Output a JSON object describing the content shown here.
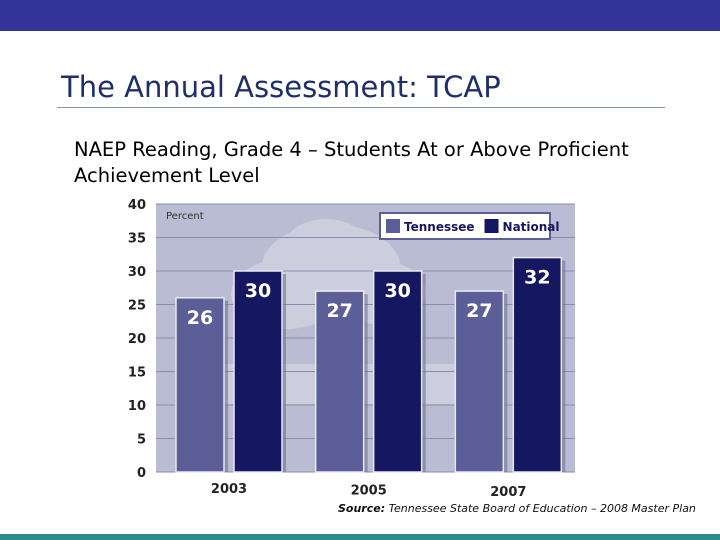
{
  "slide": {
    "title": "The Annual Assessment: TCAP",
    "subtitle": "NAEP Reading, Grade 4 – Students At or Above Proficient Achievement Level",
    "source_label": "Source:",
    "source_text": "Tennessee State Board of Education – 2008 Master Plan",
    "colors": {
      "header_bar": "#333399",
      "footer_bar": "#2e8b8b",
      "title": "#1f2f6b"
    }
  },
  "chart_data": {
    "type": "bar",
    "title": "",
    "ylabel": "Percent",
    "xlabel": "",
    "categories": [
      "2003",
      "2005",
      "2007"
    ],
    "series": [
      {
        "name": "Tennessee",
        "values": [
          26,
          27,
          27
        ],
        "color": "#5c5e97"
      },
      {
        "name": "National",
        "values": [
          30,
          30,
          32
        ],
        "color": "#151760"
      }
    ],
    "ylim": [
      0,
      40
    ],
    "yticks": [
      0,
      5,
      10,
      15,
      20,
      25,
      30,
      35,
      40
    ],
    "grid": true,
    "legend": "top-right",
    "plot_background": "#b9bcd2"
  }
}
